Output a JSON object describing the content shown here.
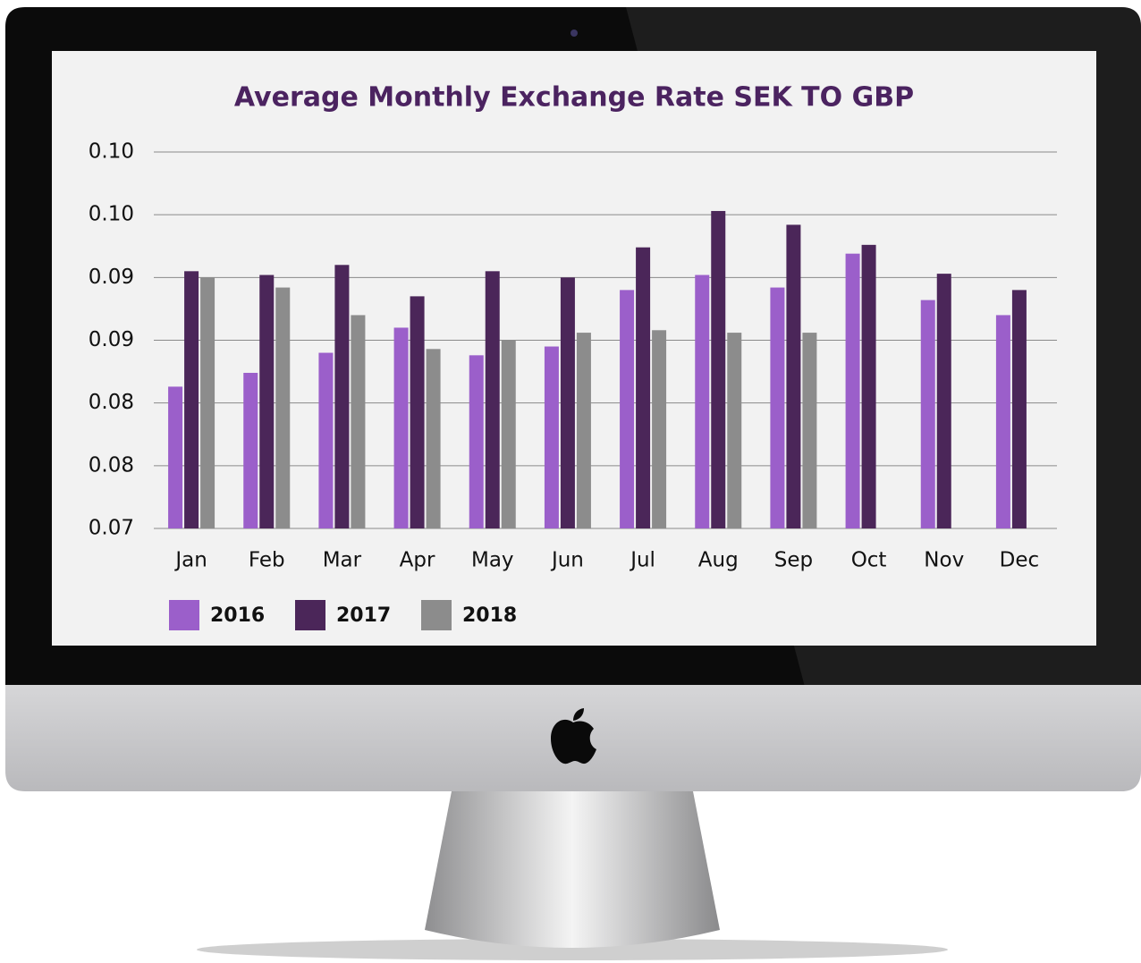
{
  "chart_data": {
    "type": "bar",
    "title": "Average Monthly Exchange Rate SEK TO GBP",
    "categories": [
      "Jan",
      "Feb",
      "Mar",
      "Apr",
      "May",
      "Jun",
      "Jul",
      "Aug",
      "Sep",
      "Oct",
      "Nov",
      "Dec"
    ],
    "series": [
      {
        "name": "2016",
        "color": "#9b5fca",
        "values": [
          0.0813,
          0.0824,
          0.084,
          0.086,
          0.0838,
          0.0845,
          0.089,
          0.0902,
          0.0892,
          0.0919,
          0.0882,
          0.087
        ]
      },
      {
        "name": "2017",
        "color": "#4b2659",
        "values": [
          0.0905,
          0.0902,
          0.091,
          0.0885,
          0.0905,
          0.09,
          0.0924,
          0.0953,
          0.0942,
          0.0926,
          0.0903,
          0.089
        ]
      },
      {
        "name": "2018",
        "color": "#8c8c8c",
        "values": [
          0.09,
          0.0892,
          0.087,
          0.0843,
          0.085,
          0.0856,
          0.0858,
          0.0856,
          0.0856,
          null,
          null,
          null
        ]
      }
    ],
    "ylim": [
      0.07,
      0.1
    ],
    "yticks": [
      0.07,
      {
        "value": 0.075,
        "label": "0.08"
      },
      0.08,
      {
        "value": 0.085,
        "label": "0.09"
      },
      0.09,
      {
        "value": 0.095,
        "label": "0.10"
      },
      {
        "value": 0.1,
        "label": "0.10"
      }
    ],
    "grid": true,
    "legend": "bottom"
  }
}
